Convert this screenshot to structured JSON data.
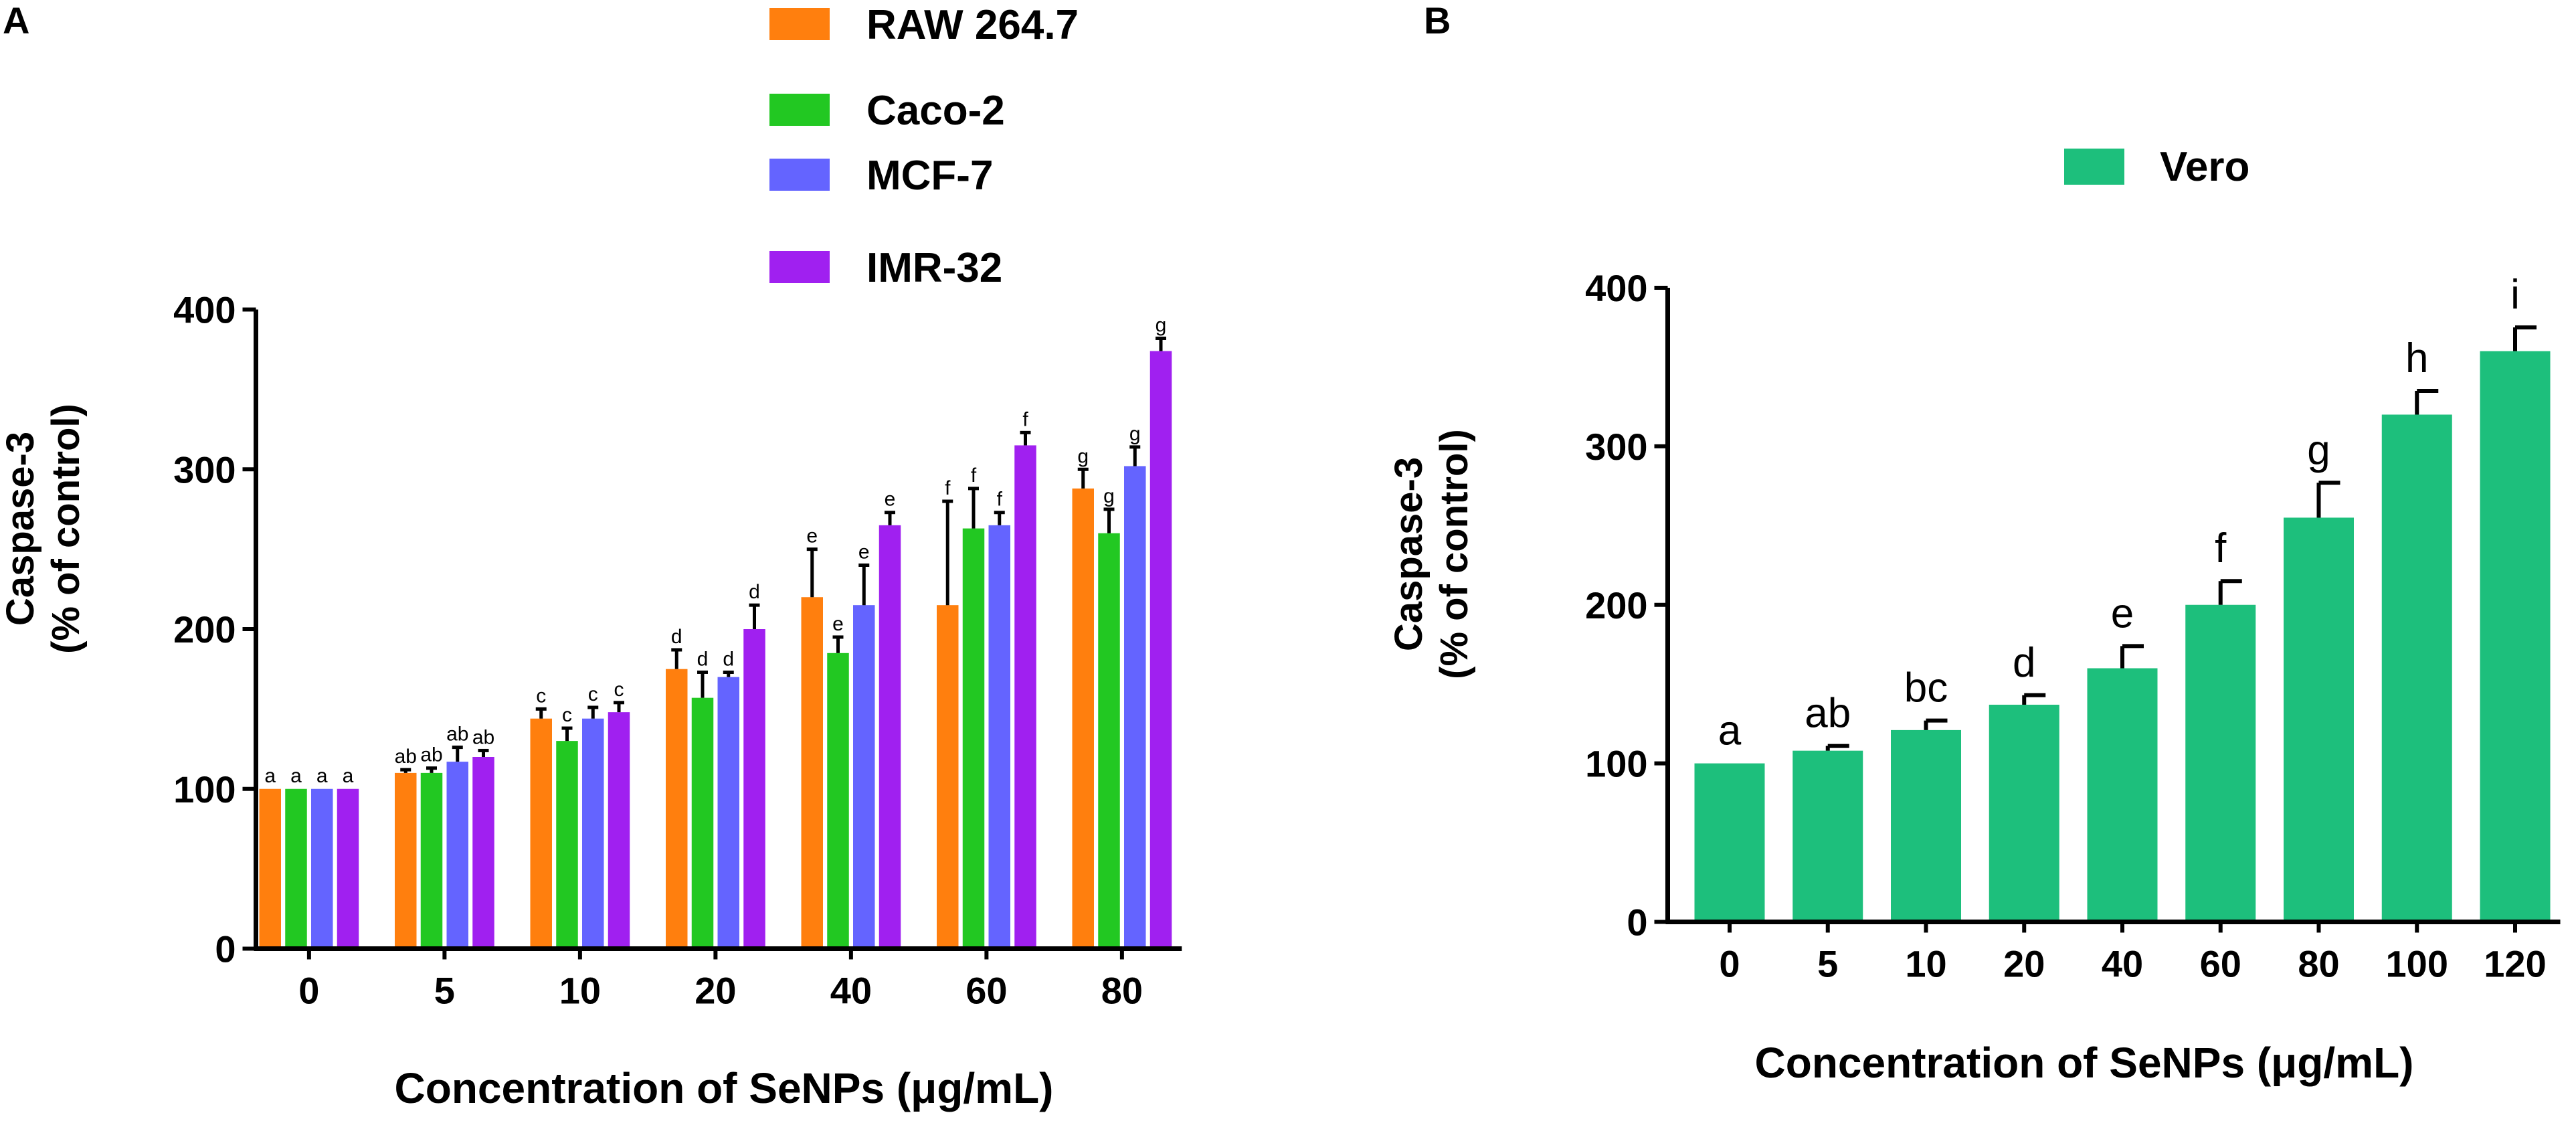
{
  "chart_data": [
    {
      "panel_label": "A",
      "type": "bar",
      "title": "",
      "xlabel": "Concentration of SeNPs (μg/mL)",
      "ylabel_line1": "Caspase-3",
      "ylabel_line2": "(% of control)",
      "ylim": [
        0,
        400
      ],
      "yticks": [
        "0",
        "100",
        "200",
        "300",
        "400"
      ],
      "categories": [
        "0",
        "5",
        "10",
        "20",
        "40",
        "60",
        "80"
      ],
      "legend_position": "top-center",
      "series": [
        {
          "name": "RAW 264.7",
          "color": "#ff7f0e",
          "values": [
            100,
            110,
            144,
            175,
            220,
            215,
            288
          ],
          "errors": [
            0,
            2,
            6,
            12,
            30,
            65,
            12
          ],
          "letters": [
            "a",
            "ab",
            "c",
            "d",
            "e",
            "f",
            "g"
          ]
        },
        {
          "name": "Caco-2",
          "color": "#22c822",
          "values": [
            100,
            110,
            130,
            157,
            185,
            263,
            260
          ],
          "errors": [
            0,
            3,
            8,
            16,
            10,
            25,
            15
          ],
          "letters": [
            "a",
            "ab",
            "c",
            "d",
            "e",
            "f",
            "g"
          ]
        },
        {
          "name": "MCF-7",
          "color": "#6464ff",
          "values": [
            100,
            117,
            144,
            170,
            215,
            265,
            302
          ],
          "errors": [
            0,
            9,
            7,
            3,
            25,
            8,
            12
          ],
          "letters": [
            "a",
            "ab",
            "c",
            "d",
            "e",
            "f",
            "g"
          ]
        },
        {
          "name": "IMR-32",
          "color": "#a020f0",
          "values": [
            100,
            120,
            148,
            200,
            265,
            315,
            374
          ],
          "errors": [
            0,
            4,
            6,
            15,
            8,
            8,
            8
          ],
          "letters": [
            "a",
            "ab",
            "c",
            "d",
            "e",
            "f",
            "g"
          ]
        }
      ]
    },
    {
      "panel_label": "B",
      "type": "bar",
      "title": "",
      "xlabel": "Concentration of SeNPs (μg/mL)",
      "ylabel_line1": "Caspase-3",
      "ylabel_line2": "(% of control)",
      "ylim": [
        0,
        400
      ],
      "yticks": [
        "0",
        "100",
        "200",
        "300",
        "400"
      ],
      "categories": [
        "0",
        "5",
        "10",
        "20",
        "40",
        "60",
        "80",
        "100",
        "120"
      ],
      "legend_position": "top-center",
      "series": [
        {
          "name": "Vero",
          "color": "#1dbf7c",
          "values": [
            100,
            108,
            121,
            137,
            160,
            200,
            255,
            320,
            360
          ],
          "errors": [
            0,
            3,
            6,
            6,
            14,
            15,
            22,
            15,
            15
          ],
          "letters": [
            "a",
            "ab",
            "bc",
            "d",
            "e",
            "f",
            "g",
            "h",
            "i"
          ]
        }
      ]
    }
  ]
}
